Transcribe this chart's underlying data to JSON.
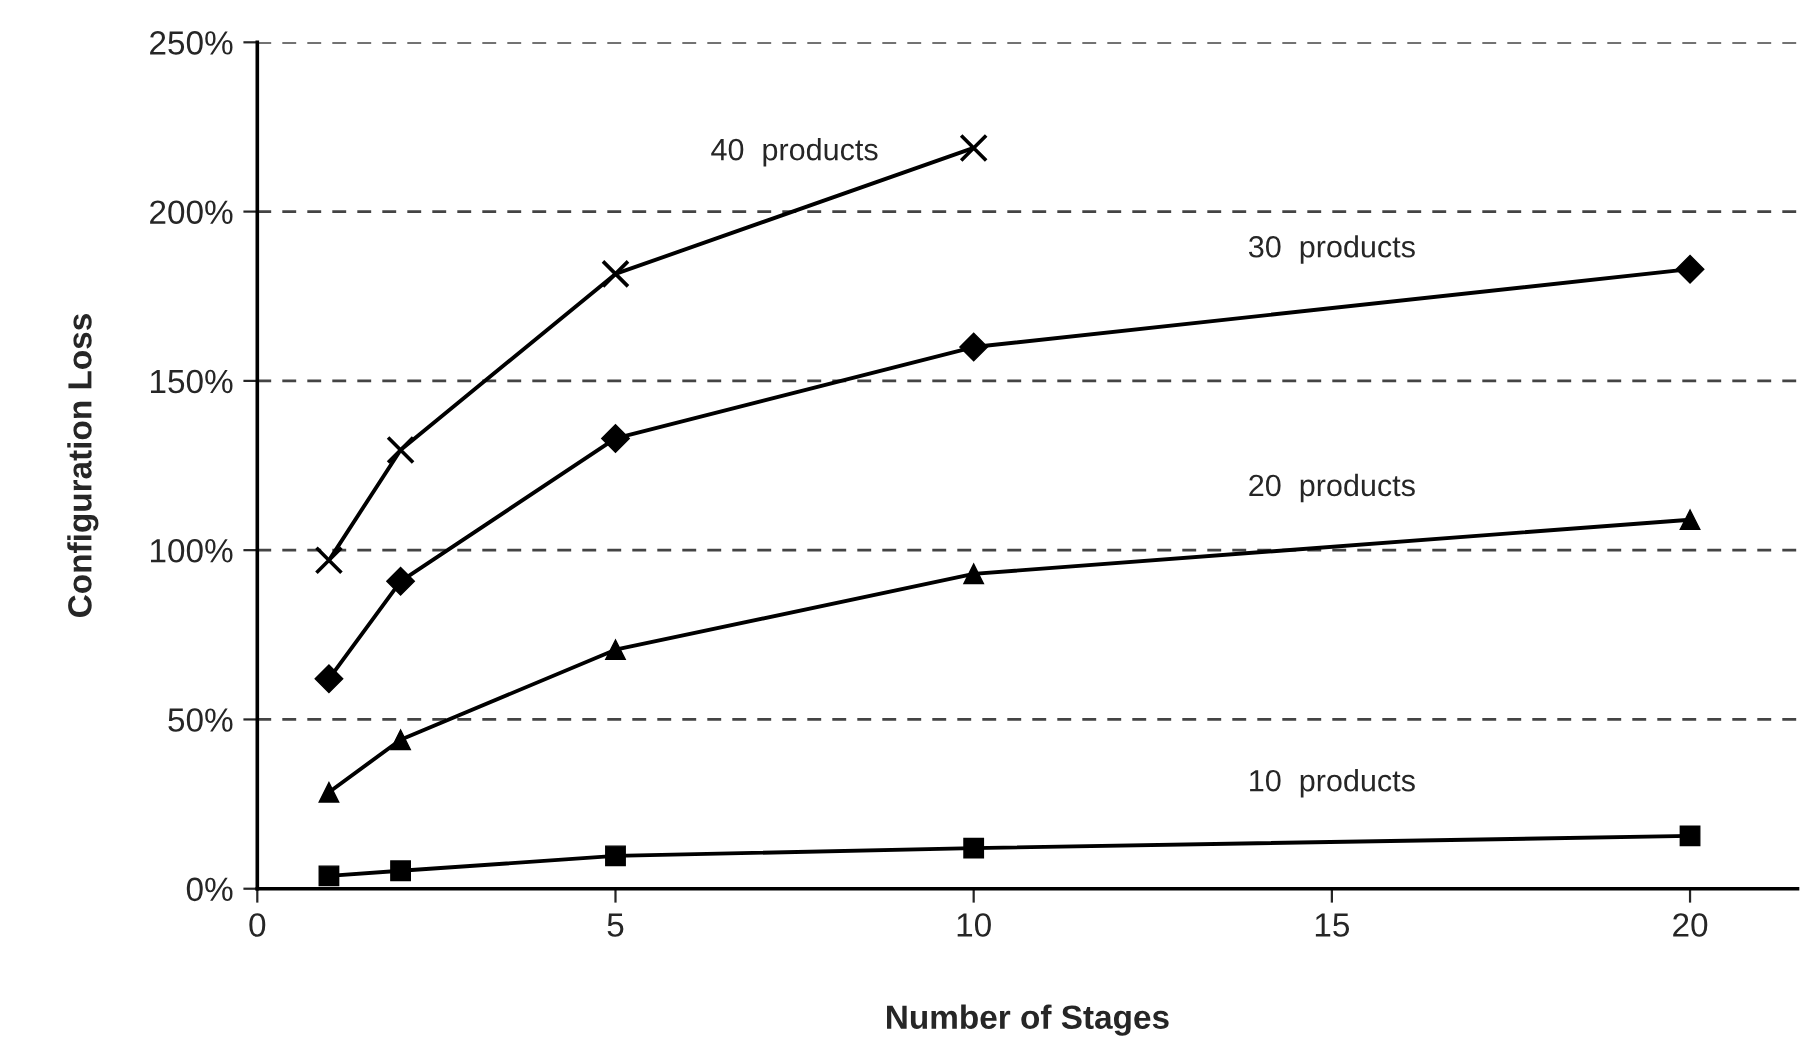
{
  "chart_data": {
    "type": "line",
    "xlabel": "Number of Stages",
    "ylabel": "Configuration Loss",
    "x": [
      1,
      2,
      5,
      10,
      20
    ],
    "series": [
      {
        "name": "10  products",
        "color": "#000000",
        "marker": "square",
        "values": [
          3.8,
          5.3,
          9.7,
          12,
          15.6
        ]
      },
      {
        "name": "20  products",
        "color": "#000000",
        "marker": "triangle",
        "values": [
          28.5,
          44,
          70.6,
          93,
          109
        ]
      },
      {
        "name": "30  products",
        "color": "#000000",
        "marker": "diamond",
        "values": [
          62,
          90.8,
          133,
          160,
          183
        ]
      },
      {
        "name": "40  products",
        "color": "#000000",
        "marker": "cross",
        "x": [
          1,
          2,
          5,
          10
        ],
        "values": [
          97,
          129.6,
          181.6,
          218.8
        ]
      }
    ],
    "xlim": [
      0,
      21.5
    ],
    "xticks": [
      0,
      5,
      10,
      15,
      20
    ],
    "ylim": [
      0,
      250
    ],
    "yticks": [
      {
        "value": 0,
        "label": "0%"
      },
      {
        "value": 50,
        "label": "50%"
      },
      {
        "value": 100,
        "label": "100%"
      },
      {
        "value": 150,
        "label": "150%"
      },
      {
        "value": 200,
        "label": "200%"
      },
      {
        "value": 250,
        "label": "250%"
      }
    ],
    "grid": "y",
    "legend": false,
    "line_style": "solid"
  }
}
